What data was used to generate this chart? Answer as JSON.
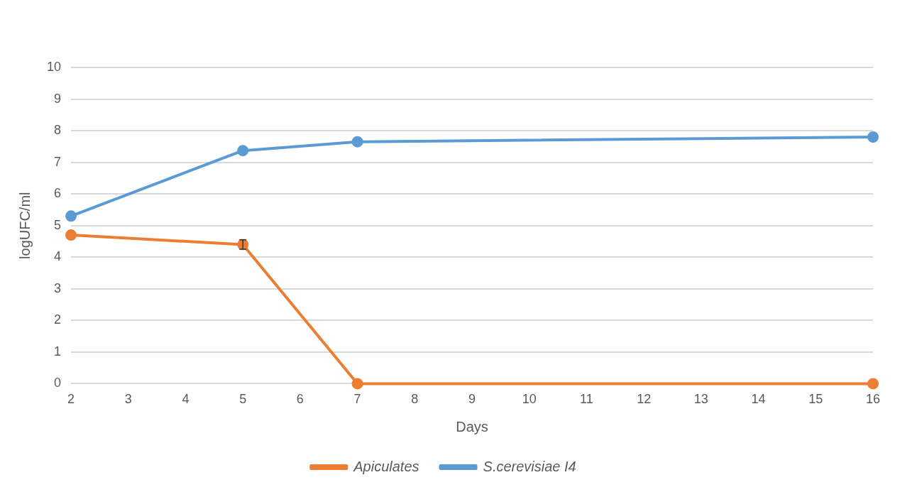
{
  "chart_data": {
    "type": "line",
    "xlabel": "Days",
    "ylabel": "logUFC/ml",
    "xlim": [
      2,
      16
    ],
    "xticks": [
      2,
      3,
      4,
      5,
      6,
      7,
      8,
      9,
      10,
      11,
      12,
      13,
      14,
      15,
      16
    ],
    "ylim": [
      0,
      10
    ],
    "yticks": [
      0,
      1,
      2,
      3,
      4,
      5,
      6,
      7,
      8,
      9,
      10
    ],
    "x": [
      2,
      5,
      7,
      16
    ],
    "series": [
      {
        "name": "Apiculates",
        "color": "#ed7d31",
        "values": [
          4.7,
          4.4,
          0,
          0
        ],
        "errors": [
          null,
          0.15,
          null,
          null
        ]
      },
      {
        "name": "S.cerevisiae I4",
        "color": "#5b9bd5",
        "values": [
          5.3,
          7.37,
          7.65,
          7.8
        ]
      }
    ],
    "grid": "y",
    "legend": "bottom",
    "marker": "circle",
    "line_style": "solid"
  }
}
